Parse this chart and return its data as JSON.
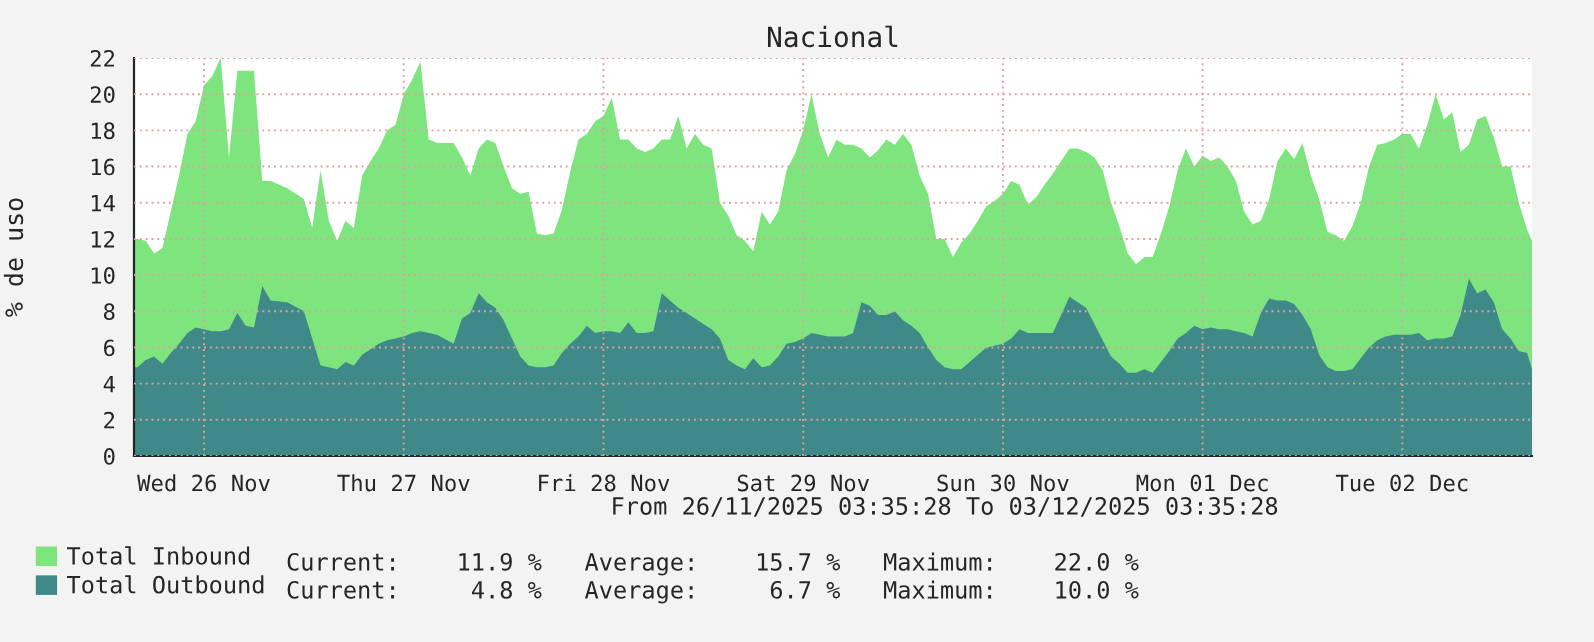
{
  "chart_data": {
    "type": "area",
    "title": "Nacional",
    "ylabel": "% de uso",
    "x": [
      "2025-11-26T03:35",
      "2025-11-26T04:00",
      "2025-11-26T05:00",
      "2025-11-26T06:00",
      "2025-11-26T07:00",
      "2025-11-26T08:00",
      "2025-11-26T09:00",
      "2025-11-26T10:00",
      "2025-11-26T11:00",
      "2025-11-26T12:00",
      "2025-11-26T13:00",
      "2025-11-26T14:00",
      "2025-11-26T15:00",
      "2025-11-26T16:00",
      "2025-11-26T17:00",
      "2025-11-26T18:00",
      "2025-11-26T19:00",
      "2025-11-26T20:00",
      "2025-11-26T22:00",
      "2025-11-27T00:00",
      "2025-11-27T01:00",
      "2025-11-27T02:00",
      "2025-11-27T03:00",
      "2025-11-27T04:00",
      "2025-11-27T05:00",
      "2025-11-27T06:00",
      "2025-11-27T07:00",
      "2025-11-27T08:00",
      "2025-11-27T09:00",
      "2025-11-27T10:00",
      "2025-11-27T11:00",
      "2025-11-27T12:00",
      "2025-11-27T13:00",
      "2025-11-27T14:00",
      "2025-11-27T15:00",
      "2025-11-27T16:00",
      "2025-11-27T18:00",
      "2025-11-27T19:00",
      "2025-11-27T20:00",
      "2025-11-27T21:00",
      "2025-11-27T22:00",
      "2025-11-27T23:00",
      "2025-11-28T00:00",
      "2025-11-28T01:00",
      "2025-11-28T02:00",
      "2025-11-28T03:00",
      "2025-11-28T04:00",
      "2025-11-28T05:00",
      "2025-11-28T06:00",
      "2025-11-28T07:00",
      "2025-11-28T08:00",
      "2025-11-28T09:00",
      "2025-11-28T10:00",
      "2025-11-28T11:00",
      "2025-11-28T12:00",
      "2025-11-28T13:00",
      "2025-11-28T14:00",
      "2025-11-28T15:00",
      "2025-11-28T16:00",
      "2025-11-28T17:00",
      "2025-11-28T18:00",
      "2025-11-28T19:00",
      "2025-11-28T20:00",
      "2025-11-28T21:00",
      "2025-11-28T22:00",
      "2025-11-28T23:00",
      "2025-11-29T00:00",
      "2025-11-29T01:00",
      "2025-11-29T02:00",
      "2025-11-29T03:00",
      "2025-11-29T04:00",
      "2025-11-29T05:00",
      "2025-11-29T06:00",
      "2025-11-29T07:00",
      "2025-11-29T08:00",
      "2025-11-29T09:00",
      "2025-11-29T10:00",
      "2025-11-29T11:00",
      "2025-11-29T12:00",
      "2025-11-29T13:00",
      "2025-11-29T14:00",
      "2025-11-29T15:00",
      "2025-11-29T16:00",
      "2025-11-29T17:00",
      "2025-11-29T18:00",
      "2025-11-29T19:00",
      "2025-11-29T20:00",
      "2025-11-29T21:00",
      "2025-11-29T22:00",
      "2025-11-29T23:00",
      "2025-11-30T00:00",
      "2025-11-30T01:00",
      "2025-11-30T02:00",
      "2025-11-30T03:00",
      "2025-11-30T04:00",
      "2025-11-30T05:00",
      "2025-11-30T06:00",
      "2025-11-30T07:00",
      "2025-11-30T08:00",
      "2025-11-30T09:00",
      "2025-11-30T10:00",
      "2025-11-30T11:00",
      "2025-11-30T12:00",
      "2025-11-30T13:00",
      "2025-11-30T14:00",
      "2025-11-30T15:00",
      "2025-11-30T16:00",
      "2025-11-30T17:00",
      "2025-11-30T18:00",
      "2025-11-30T19:00",
      "2025-11-30T20:00",
      "2025-11-30T21:00",
      "2025-11-30T22:00",
      "2025-11-30T23:00",
      "2025-12-01T00:00",
      "2025-12-01T01:00",
      "2025-12-01T02:00",
      "2025-12-01T03:00",
      "2025-12-01T04:00",
      "2025-12-01T05:00",
      "2025-12-01T06:00",
      "2025-12-01T07:00",
      "2025-12-01T08:00",
      "2025-12-01T09:00",
      "2025-12-01T10:00",
      "2025-12-01T11:00",
      "2025-12-01T12:00",
      "2025-12-01T13:00",
      "2025-12-01T14:00",
      "2025-12-01T15:00",
      "2025-12-01T16:00",
      "2025-12-01T17:00",
      "2025-12-01T18:00",
      "2025-12-01T19:00",
      "2025-12-01T20:00",
      "2025-12-01T21:00",
      "2025-12-01T22:00",
      "2025-12-01T23:00",
      "2025-12-02T00:00",
      "2025-12-02T01:00",
      "2025-12-02T02:00",
      "2025-12-02T03:00",
      "2025-12-02T04:00",
      "2025-12-02T05:00",
      "2025-12-02T06:00",
      "2025-12-02T07:00",
      "2025-12-02T08:00",
      "2025-12-02T09:00",
      "2025-12-02T10:00",
      "2025-12-02T11:00",
      "2025-12-02T12:00",
      "2025-12-02T13:00",
      "2025-12-02T14:00",
      "2025-12-02T15:00",
      "2025-12-02T16:00",
      "2025-12-02T17:00",
      "2025-12-02T18:00",
      "2025-12-02T19:00",
      "2025-12-02T20:00",
      "2025-12-02T21:00",
      "2025-12-02T22:00",
      "2025-12-02T23:00",
      "2025-12-03T00:00",
      "2025-12-03T01:00",
      "2025-12-03T02:00",
      "2025-12-03T03:00",
      "2025-12-03T03:35"
    ],
    "series": [
      {
        "name": "Total Inbound",
        "color": "#7ee57e",
        "values": [
          12.0,
          12.0,
          11.9,
          11.2,
          11.5,
          13.5,
          15.5,
          17.8,
          18.5,
          20.5,
          21.0,
          22.0,
          16.5,
          21.3,
          21.3,
          21.3,
          15.2,
          15.2,
          14.8,
          14.2,
          12.6,
          15.8,
          13.0,
          11.9,
          13.0,
          12.6,
          15.5,
          16.3,
          17.0,
          18.0,
          18.3,
          20.0,
          20.8,
          21.8,
          17.5,
          17.3,
          17.3,
          16.5,
          15.5,
          17.0,
          17.5,
          17.3,
          16.0,
          14.8,
          14.5,
          14.6,
          12.3,
          12.2,
          12.3,
          13.6,
          15.7,
          17.5,
          17.8,
          18.5,
          18.8,
          19.8,
          17.5,
          17.5,
          17.0,
          16.8,
          17.0,
          17.5,
          17.5,
          18.8,
          17.0,
          17.8,
          17.2,
          17.0,
          14.0,
          13.3,
          12.2,
          11.9,
          11.3,
          13.5,
          12.8,
          13.5,
          15.8,
          16.7,
          18.0,
          20.0,
          17.8,
          16.5,
          17.5,
          17.2,
          17.2,
          17.0,
          16.5,
          16.9,
          17.5,
          17.2,
          17.8,
          17.2,
          15.5,
          14.5,
          12.0,
          12.0,
          11.0,
          11.8,
          12.3,
          13.0,
          13.8,
          14.1,
          14.5,
          15.2,
          15.0,
          13.9,
          14.3,
          15.0,
          15.6,
          16.3,
          17.0,
          17.0,
          16.8,
          16.5,
          15.8,
          14.0,
          12.7,
          11.2,
          10.6,
          11.0,
          11.0,
          12.3,
          13.8,
          15.8,
          17.0,
          16.0,
          16.6,
          16.3,
          16.5,
          16.0,
          15.2,
          13.5,
          12.8,
          13.0,
          14.2,
          16.3,
          17.0,
          16.4,
          17.3,
          15.5,
          14.2,
          12.4,
          12.2,
          11.9,
          12.7,
          14.0,
          16.0,
          17.2,
          17.3,
          17.5,
          17.8,
          17.8,
          17.0,
          18.3,
          20.0,
          18.6,
          19.0,
          16.8,
          17.2,
          18.6,
          18.8,
          17.6,
          16.0,
          16.0,
          14.0,
          12.5,
          11.9
        ]
      },
      {
        "name": "Total Outbound",
        "color": "#3f8a88",
        "values": [
          4.9,
          4.9,
          5.3,
          5.5,
          5.1,
          5.7,
          6.2,
          6.8,
          7.1,
          7.0,
          6.9,
          6.9,
          7.0,
          7.9,
          7.2,
          7.1,
          9.4,
          8.6,
          8.5,
          8.0,
          6.5,
          5.0,
          4.9,
          4.8,
          5.2,
          5.0,
          5.6,
          5.9,
          6.2,
          6.4,
          6.5,
          6.6,
          6.8,
          6.9,
          6.8,
          6.7,
          6.2,
          7.6,
          7.9,
          9.0,
          8.5,
          8.2,
          7.5,
          6.5,
          5.5,
          5.0,
          4.9,
          4.9,
          5.0,
          5.7,
          6.2,
          6.6,
          7.2,
          6.8,
          6.9,
          6.9,
          6.8,
          7.4,
          6.8,
          6.8,
          6.9,
          9.0,
          8.6,
          8.2,
          7.9,
          7.6,
          7.3,
          7.0,
          6.5,
          5.3,
          5.0,
          4.8,
          5.4,
          4.9,
          5.0,
          5.5,
          6.2,
          6.3,
          6.5,
          6.8,
          6.7,
          6.6,
          6.6,
          6.6,
          6.8,
          8.5,
          8.3,
          7.8,
          7.8,
          8.0,
          7.5,
          7.2,
          6.8,
          6.0,
          5.3,
          4.9,
          4.8,
          4.8,
          5.2,
          5.6,
          6.0,
          6.1,
          6.2,
          6.5,
          7.0,
          6.8,
          6.8,
          6.8,
          6.8,
          7.8,
          8.8,
          8.5,
          8.2,
          7.3,
          6.4,
          5.5,
          5.1,
          4.6,
          4.6,
          4.8,
          4.6,
          5.2,
          5.8,
          6.5,
          6.8,
          7.2,
          7.0,
          7.1,
          7.0,
          7.0,
          6.9,
          6.8,
          6.6,
          7.9,
          8.7,
          8.6,
          8.6,
          8.4,
          7.8,
          7.0,
          5.6,
          4.9,
          4.7,
          4.7,
          4.8,
          5.4,
          6.0,
          6.4,
          6.6,
          6.7,
          6.7,
          6.7,
          6.8,
          6.4,
          6.5,
          6.5,
          6.6,
          7.8,
          9.8,
          9.0,
          9.2,
          8.5,
          7.0,
          6.5,
          5.8,
          5.7,
          4.8
        ]
      }
    ],
    "xlim": [
      "2025-11-26T03:35",
      "2025-12-03T03:35"
    ],
    "xticks": [
      {
        "value": "2025-11-26T12:00",
        "label": "Wed 26 Nov"
      },
      {
        "value": "2025-11-27T12:00",
        "label": "Thu 27 Nov"
      },
      {
        "value": "2025-11-28T12:00",
        "label": "Fri 28 Nov"
      },
      {
        "value": "2025-11-29T12:00",
        "label": "Sat 29 Nov"
      },
      {
        "value": "2025-11-30T12:00",
        "label": "Sun 30 Nov"
      },
      {
        "value": "2025-12-01T12:00",
        "label": "Mon 01 Dec"
      },
      {
        "value": "2025-12-02T12:00",
        "label": "Tue 02 Dec"
      }
    ],
    "ylim": [
      0,
      22
    ],
    "yticks": [
      0,
      2,
      4,
      6,
      8,
      10,
      12,
      14,
      16,
      18,
      20,
      22
    ],
    "grid": true,
    "legend": "bottom left",
    "annotations": [
      "From 26/11/2025 03:35:28 To 03/12/2025 03:35:28",
      "Current:    11.9 %   Average:    15.7 %   Maximum:    22.0 %",
      "Current:     4.8 %   Average:     6.7 %   Maximum:    10.0 %"
    ]
  }
}
